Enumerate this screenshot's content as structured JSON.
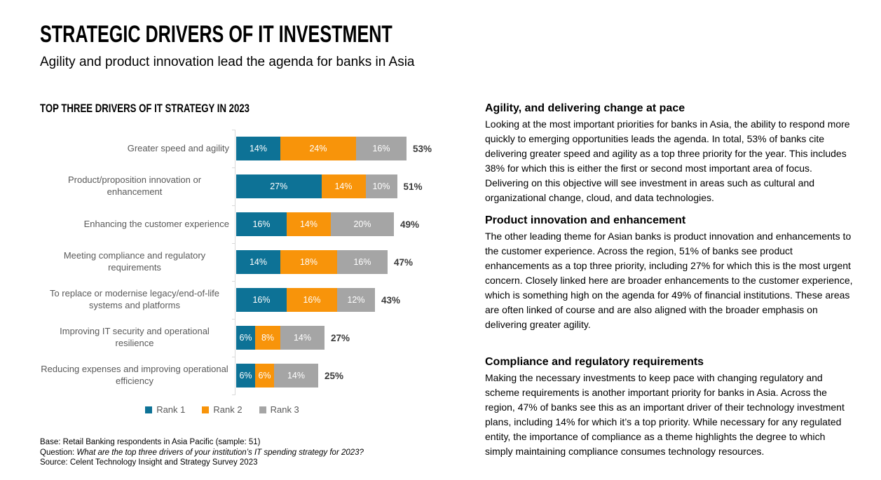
{
  "header": {
    "title": "STRATEGIC DRIVERS OF IT INVESTMENT",
    "subtitle": "Agility and product innovation lead the agenda for banks in Asia"
  },
  "chart": {
    "title": "TOP THREE DRIVERS OF IT STRATEGY IN 2023"
  },
  "chart_data": {
    "type": "bar",
    "orientation": "horizontal-stacked",
    "title": "TOP THREE DRIVERS OF IT STRATEGY IN 2023",
    "categories": [
      "Greater speed and agility",
      "Product/proposition innovation or enhancement",
      "Enhancing the customer experience",
      "Meeting compliance and regulatory requirements",
      "To replace or modernise legacy/end-of-life systems and platforms",
      "Improving IT security and operational resilience",
      "Reducing expenses and improving operational efficiency"
    ],
    "series": [
      {
        "name": "Rank 1",
        "color": "#0D7296",
        "values": [
          14,
          27,
          16,
          14,
          16,
          6,
          6
        ]
      },
      {
        "name": "Rank 2",
        "color": "#F8940A",
        "values": [
          24,
          14,
          14,
          18,
          16,
          8,
          6
        ]
      },
      {
        "name": "Rank 3",
        "color": "#A5A5A5",
        "values": [
          16,
          10,
          20,
          16,
          12,
          14,
          14
        ]
      }
    ],
    "totals": [
      53,
      51,
      49,
      47,
      43,
      27,
      25
    ],
    "value_suffix": "%",
    "xlim": [
      0,
      60
    ],
    "grid": false,
    "legend_position": "bottom",
    "axis_color": "#d9d9d9"
  },
  "notes": {
    "base": "Base: Retail Banking respondents in Asia Pacific (sample: 51)",
    "question_label": "Question: ",
    "question_text": "What are the top three drivers of your institution’s IT spending strategy for 2023?",
    "source": "Source: Celent Technology Insight and Strategy Survey 2023"
  },
  "sections": [
    {
      "heading": "Agility, and delivering change at pace",
      "body": "Looking at the most important priorities for banks in Asia, the ability to respond more quickly to emerging opportunities leads the agenda. In total, 53% of banks cite delivering greater speed and agility as a top three priority for the year. This includes 38% for which this is either the first or second most important area of focus. Delivering on this objective will see investment in areas such as cultural and organizational change, cloud, and data technologies."
    },
    {
      "heading": "Product innovation and enhancement",
      "body": "The other leading theme for Asian banks is product innovation and enhancements to the customer experience. Across the region, 51% of banks see product enhancements as a top three priority, including 27% for which this is the most urgent concern. Closely linked here are broader enhancements to the customer experience, which is something high on the agenda for 49% of financial institutions. These areas are often linked of course and are also aligned with the broader emphasis on delivering greater agility."
    },
    {
      "heading": "Compliance and regulatory requirements",
      "body": "Making the necessary investments to keep pace with changing regulatory and scheme requirements is another important priority for banks in Asia. Across the region, 47% of banks see this as an important driver of their technology investment plans, including 14% for which it’s a top priority. While necessary for any regulated entity, the importance of compliance as a theme highlights the degree to which simply maintaining compliance consumes technology resources."
    }
  ]
}
